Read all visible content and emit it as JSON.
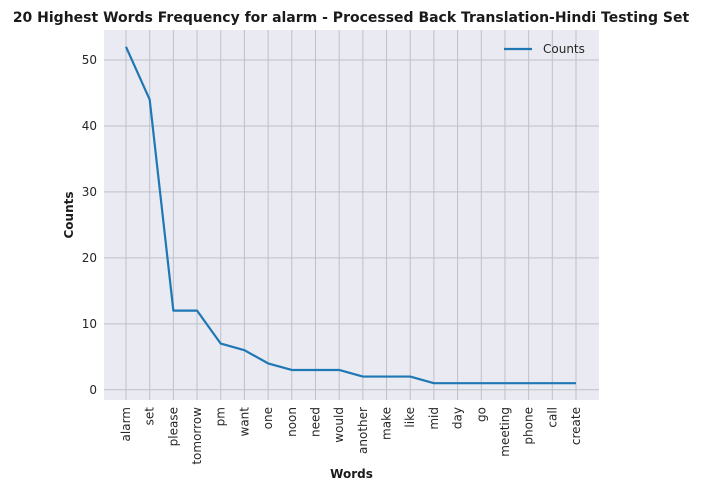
{
  "chart_data": {
    "type": "line",
    "title": "20 Highest Words Frequency for alarm - Processed Back Translation-Hindi Testing Set",
    "xlabel": "Words",
    "ylabel": "Counts",
    "categories": [
      "alarm",
      "set",
      "please",
      "tomorrow",
      "pm",
      "want",
      "one",
      "noon",
      "need",
      "would",
      "another",
      "make",
      "like",
      "mid",
      "day",
      "go",
      "meeting",
      "phone",
      "call",
      "create"
    ],
    "series": [
      {
        "name": "Counts",
        "values": [
          52,
          44,
          12,
          12,
          7,
          6,
          4,
          3,
          3,
          3,
          2,
          2,
          2,
          1,
          1,
          1,
          1,
          1,
          1,
          1
        ],
        "color": "#1f77b4"
      }
    ],
    "yticks": [
      0,
      10,
      20,
      30,
      40,
      50
    ],
    "ylim": [
      -1.55,
      54.55
    ],
    "grid": true,
    "legend_position": "upper-right",
    "plot_background": "#eaeaf2",
    "grid_color": "#c0c0c8"
  }
}
